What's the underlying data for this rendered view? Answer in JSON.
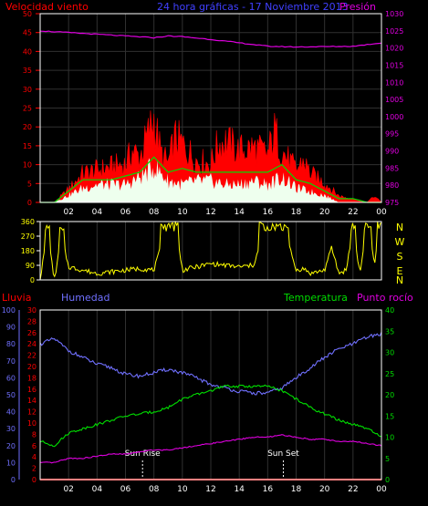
{
  "header": {
    "left": "Velocidad viento",
    "center": "24 hora gráficas - 17 Noviembre 2013",
    "right": "Presión"
  },
  "colors": {
    "background": "#000000",
    "frame": "#ffffff",
    "grid": "#303030",
    "red": "#ff0000",
    "green": "#00dd00",
    "white": "#ffffff",
    "magenta": "#e000e0",
    "yellow": "#ffff00",
    "blue": "#7070ff",
    "darkgreen": "#00aa00"
  },
  "chart_data": [
    {
      "id": "wind",
      "type": "area",
      "x_ticks": [
        "02",
        "04",
        "06",
        "08",
        "10",
        "12",
        "14",
        "16",
        "18",
        "20",
        "22",
        "00"
      ],
      "left_axis": {
        "label": "Velocidad viento",
        "ticks": [
          0,
          5,
          10,
          15,
          20,
          25,
          30,
          35,
          40,
          45,
          50
        ],
        "ylim": [
          0,
          50
        ]
      },
      "right_axis": {
        "label": "Presión",
        "ticks": [
          975,
          980,
          985,
          990,
          995,
          1000,
          1005,
          1010,
          1015,
          1020,
          1025,
          1030
        ],
        "ylim": [
          975,
          1030
        ]
      },
      "grid": true,
      "series": [
        {
          "name": "Presión",
          "axis": "right",
          "x": [
            0,
            2,
            4,
            6,
            8,
            9,
            10,
            12,
            14,
            16,
            18,
            20,
            22,
            24
          ],
          "values": [
            1025,
            1024.5,
            1024,
            1023.5,
            1023,
            1023.5,
            1023.3,
            1022.5,
            1021.5,
            1020.5,
            1020.3,
            1020.4,
            1020.5,
            1021.5
          ]
        },
        {
          "axis": "left",
          "x": [
            0,
            1,
            2,
            3,
            4,
            5,
            6,
            6.5,
            7,
            7.5,
            8,
            8.5,
            9,
            9.5,
            10,
            11,
            12,
            12.5,
            13,
            14,
            15,
            15.5,
            16,
            16.5,
            17,
            18,
            18.5,
            19,
            20,
            21,
            22,
            23,
            23.5,
            24
          ],
          "values": [
            0,
            0,
            4,
            9,
            10,
            11,
            12,
            16,
            14,
            20,
            26,
            15,
            12,
            20,
            18,
            13,
            12,
            18,
            19,
            16,
            17,
            16,
            15,
            22,
            16,
            10,
            13,
            9,
            6,
            2,
            1,
            0,
            2,
            0
          ]
        },
        {
          "axis": "left",
          "x": [
            0,
            1,
            2,
            3,
            4,
            5,
            6,
            7,
            8,
            9,
            10,
            11,
            12,
            13,
            14,
            15,
            16,
            17,
            18,
            19,
            20,
            21,
            22,
            23,
            24
          ],
          "values": [
            0,
            0,
            3,
            6,
            6,
            6,
            7,
            8,
            12,
            8,
            9,
            8,
            8,
            8,
            8,
            8,
            8,
            10,
            6,
            5,
            3,
            1,
            1,
            0,
            0
          ]
        },
        {
          "axis": "left",
          "x": [
            0,
            1,
            2,
            3,
            4,
            5,
            6,
            7,
            8,
            9,
            10,
            11,
            12,
            13,
            14,
            15,
            16,
            17,
            18,
            19,
            20,
            21,
            22,
            23,
            24
          ],
          "values": [
            0,
            0,
            2,
            4,
            5,
            5,
            5,
            7,
            10,
            6,
            5,
            6,
            6,
            5,
            5,
            6,
            5,
            7,
            4,
            3,
            2,
            0,
            0,
            0,
            0
          ]
        }
      ]
    },
    {
      "id": "direction",
      "type": "line",
      "x_ticks": [],
      "left_axis": {
        "ticks": [
          0,
          90,
          180,
          270,
          360
        ],
        "ylim": [
          0,
          360
        ]
      },
      "right_axis": {
        "ticks": [
          "N",
          "W",
          "S",
          "E",
          "N"
        ]
      },
      "series": [
        {
          "axis": "left",
          "x": [
            0,
            0.5,
            1,
            1.5,
            2,
            3,
            4,
            5,
            6,
            7,
            8,
            9,
            9.3,
            9.5,
            10,
            11,
            12,
            13,
            14,
            15,
            16,
            16.5,
            17,
            18,
            18.5,
            19,
            20,
            20.5,
            21,
            21.5,
            22,
            22.5,
            23,
            23.5,
            24
          ],
          "values": [
            0,
            300,
            0,
            270,
            80,
            60,
            40,
            50,
            60,
            70,
            60,
            350,
            350,
            350,
            60,
            80,
            100,
            90,
            80,
            90,
            360,
            350,
            360,
            60,
            70,
            40,
            60,
            200,
            40,
            60,
            300,
            40,
            360,
            100,
            360
          ]
        }
      ]
    },
    {
      "id": "climate",
      "type": "line",
      "x_ticks": [
        "02",
        "04",
        "06",
        "08",
        "10",
        "12",
        "14",
        "16",
        "18",
        "20",
        "22",
        "00"
      ],
      "axes": [
        {
          "label": "Lluvia",
          "ticks": [
            0,
            2,
            4,
            6,
            8,
            10,
            12,
            14,
            16,
            18,
            20,
            22,
            24,
            26,
            28,
            30
          ],
          "ylim": [
            0,
            30
          ]
        },
        {
          "label": "Humedad",
          "ticks": [
            0,
            10,
            20,
            30,
            40,
            50,
            60,
            70,
            80,
            90,
            100
          ],
          "ylim": [
            0,
            100
          ]
        },
        {
          "label": "Temperatura",
          "ticks": [
            0,
            5,
            10,
            15,
            20,
            25,
            30,
            35,
            40
          ],
          "ylim": [
            0,
            40
          ]
        },
        {
          "label": "Punto rocío",
          "ticks": [
            0,
            5,
            10,
            15,
            20,
            25,
            30,
            35,
            40
          ],
          "ylim": [
            0,
            40
          ]
        }
      ],
      "annotations": [
        {
          "text": "Sun Rise",
          "x": 7.2
        },
        {
          "text": "Sun Set",
          "x": 17.1
        }
      ],
      "series": [
        {
          "name": "Humedad",
          "axis": 1,
          "x": [
            0,
            1,
            2,
            3,
            4,
            5,
            6,
            7,
            8,
            9,
            10,
            11,
            12,
            13,
            14,
            15,
            16,
            17,
            18,
            19,
            20,
            21,
            22,
            23,
            24
          ],
          "values": [
            80,
            83,
            76,
            72,
            68,
            66,
            62,
            61,
            63,
            65,
            63,
            60,
            56,
            54,
            52,
            51,
            51,
            54,
            60,
            66,
            72,
            77,
            80,
            84,
            86
          ]
        },
        {
          "name": "Temperatura",
          "axis": 2,
          "x": [
            0,
            1,
            2,
            3,
            4,
            5,
            6,
            7,
            8,
            9,
            10,
            11,
            12,
            13,
            14,
            15,
            16,
            17,
            18,
            19,
            20,
            21,
            22,
            23,
            24
          ],
          "values": [
            9,
            8,
            11,
            12,
            13,
            14,
            15,
            15.5,
            16,
            17,
            19,
            20,
            21,
            22,
            22,
            22,
            22,
            21,
            19,
            17,
            15.5,
            14,
            13,
            12,
            10
          ]
        },
        {
          "name": "Punto rocío",
          "axis": 3,
          "x": [
            0,
            1,
            2,
            3,
            4,
            5,
            6,
            7,
            8,
            9,
            10,
            11,
            12,
            13,
            14,
            15,
            16,
            17,
            18,
            19,
            20,
            21,
            22,
            23,
            24
          ],
          "values": [
            4,
            4,
            5,
            5,
            5.5,
            6,
            6,
            6.5,
            7,
            7,
            7.5,
            8,
            8.5,
            9,
            9.5,
            10,
            10,
            10.5,
            10,
            9.5,
            9.5,
            9,
            9,
            8.5,
            8
          ]
        },
        {
          "name": "Lluvia",
          "axis": 0,
          "x": [
            0,
            24
          ],
          "values": [
            0,
            0
          ]
        }
      ]
    }
  ]
}
